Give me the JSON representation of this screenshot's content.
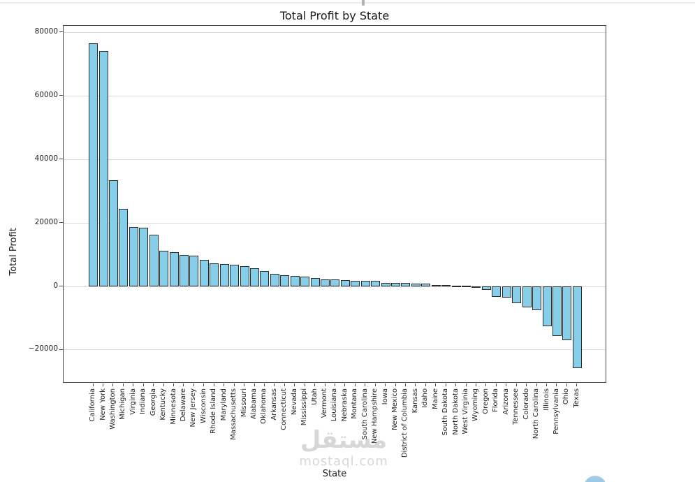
{
  "page": {
    "background": "#ffffff",
    "top_divider_color": "#ebebeb",
    "top_divider_handle_color": "#b3b3b3"
  },
  "watermark": {
    "logo_text": "مستقل",
    "site_text": "mostaql.com",
    "color": "#d7d7d7"
  },
  "floating_circle": {
    "color": "#7ab4db"
  },
  "chart_data": {
    "type": "bar",
    "title": "Total Profit by State",
    "xlabel": "State",
    "ylabel": "Total Profit",
    "grid": "horizontal",
    "legend": "none",
    "bar_color": "#87CEEB",
    "bar_edge_color": "#2b2b2b",
    "ylim": [
      -30550,
      81980
    ],
    "yticks": [
      -20000,
      0,
      20000,
      40000,
      60000,
      80000
    ],
    "ytick_labels": [
      "−20000",
      "0",
      "20000",
      "40000",
      "60000",
      "80000"
    ],
    "categories": [
      "California",
      "New York",
      "Washington",
      "Michigan",
      "Virginia",
      "Indiana",
      "Georgia",
      "Kentucky",
      "Minnesota",
      "Delaware",
      "New Jersey",
      "Wisconsin",
      "Rhode Island",
      "Maryland",
      "Massachusetts",
      "Missouri",
      "Alabama",
      "Oklahoma",
      "Arkansas",
      "Connecticut",
      "Nevada",
      "Mississippi",
      "Utah",
      "Vermont",
      "Louisiana",
      "Nebraska",
      "Montana",
      "South Carolina",
      "New Hampshire",
      "Iowa",
      "New Mexico",
      "District of Columbia",
      "Kansas",
      "Idaho",
      "Maine",
      "South Dakota",
      "North Dakota",
      "West Virginia",
      "Wyoming",
      "Oregon",
      "Florida",
      "Arizona",
      "Tennessee",
      "Colorado",
      "North Carolina",
      "Illinois",
      "Pennsylvania",
      "Ohio",
      "Texas"
    ],
    "values": [
      76381,
      74039,
      33403,
      24463,
      18598,
      18383,
      16250,
      11200,
      10823,
      9977,
      9773,
      8402,
      7286,
      7031,
      6786,
      6436,
      5787,
      4854,
      4009,
      3511,
      3317,
      3173,
      2547,
      2245,
      2196,
      2037,
      1833,
      1769,
      1707,
      1184,
      1157,
      1060,
      836,
      827,
      454,
      395,
      230,
      186,
      100,
      -1190,
      -3399,
      -3428,
      -5342,
      -6528,
      -7491,
      -12608,
      -15560,
      -16971,
      -25729
    ]
  }
}
